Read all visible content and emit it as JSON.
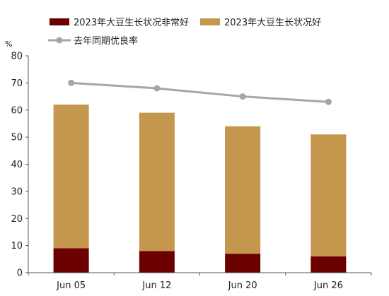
{
  "chart_data": {
    "type": "bar",
    "subtype": "stacked-bar-with-line",
    "categories": [
      "Jun 05",
      "Jun 12",
      "Jun 20",
      "Jun 26"
    ],
    "y_unit": "%",
    "ylim": [
      0,
      80
    ],
    "yticks": [
      "0",
      "10",
      "20",
      "30",
      "40",
      "50",
      "60",
      "70",
      "80"
    ],
    "grid": false,
    "legend_position": "top",
    "series": [
      {
        "name": "2023年大豆生长状况非常好",
        "kind": "bar",
        "stack": "a",
        "color": "#6b0000",
        "values": [
          9,
          8,
          7,
          6
        ]
      },
      {
        "name": "2023年大豆生长状况好",
        "kind": "bar",
        "stack": "a",
        "color": "#c4964e",
        "values": [
          53,
          51,
          47,
          45
        ]
      },
      {
        "name": "去年同期优良率",
        "kind": "line",
        "color": "#a6a6a6",
        "values": [
          70,
          68,
          65,
          63
        ]
      }
    ]
  }
}
